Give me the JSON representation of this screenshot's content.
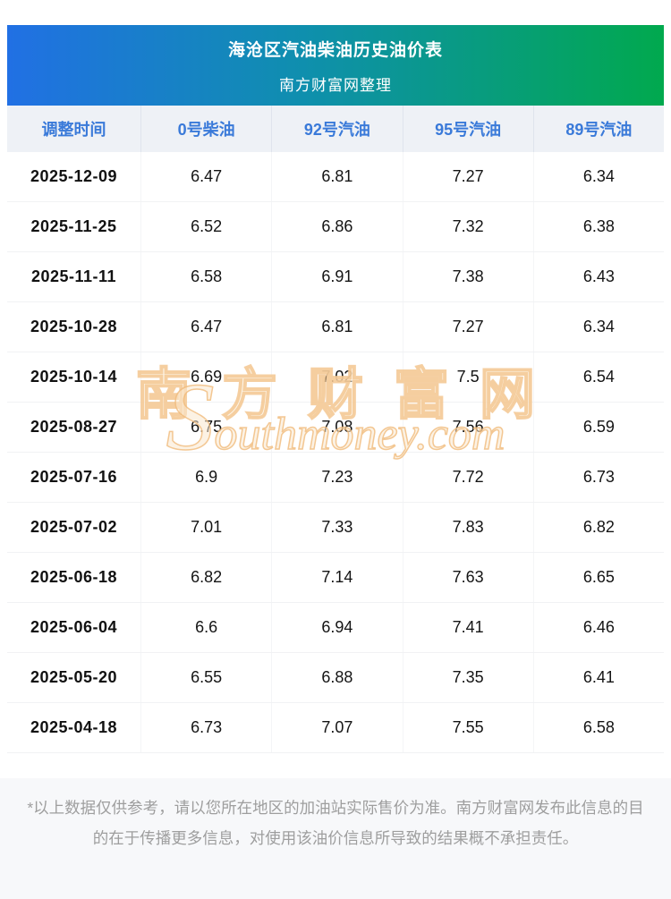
{
  "header": {
    "title": "海沧区汽油柴油历史油价表",
    "subtitle": "南方财富网整理"
  },
  "table": {
    "columns": [
      "调整时间",
      "0号柴油",
      "92号汽油",
      "95号汽油",
      "89号汽油"
    ],
    "rows": [
      {
        "date": "2025-12-09",
        "values": [
          "6.47",
          "6.81",
          "7.27",
          "6.34"
        ]
      },
      {
        "date": "2025-11-25",
        "values": [
          "6.52",
          "6.86",
          "7.32",
          "6.38"
        ]
      },
      {
        "date": "2025-11-11",
        "values": [
          "6.58",
          "6.91",
          "7.38",
          "6.43"
        ]
      },
      {
        "date": "2025-10-28",
        "values": [
          "6.47",
          "6.81",
          "7.27",
          "6.34"
        ]
      },
      {
        "date": "2025-10-14",
        "values": [
          "6.69",
          "7.02",
          "7.5",
          "6.54"
        ]
      },
      {
        "date": "2025-08-27",
        "values": [
          "6.75",
          "7.08",
          "7.56",
          "6.59"
        ]
      },
      {
        "date": "2025-07-16",
        "values": [
          "6.9",
          "7.23",
          "7.72",
          "6.73"
        ]
      },
      {
        "date": "2025-07-02",
        "values": [
          "7.01",
          "7.33",
          "7.83",
          "6.82"
        ]
      },
      {
        "date": "2025-06-18",
        "values": [
          "6.82",
          "7.14",
          "7.63",
          "6.65"
        ]
      },
      {
        "date": "2025-06-04",
        "values": [
          "6.6",
          "6.94",
          "7.41",
          "6.46"
        ]
      },
      {
        "date": "2025-05-20",
        "values": [
          "6.55",
          "6.88",
          "7.35",
          "6.41"
        ]
      },
      {
        "date": "2025-04-18",
        "values": [
          "6.73",
          "7.07",
          "7.55",
          "6.58"
        ]
      }
    ]
  },
  "watermark": {
    "cn": "南方财富网",
    "en": "Southmoney.com"
  },
  "footer": {
    "disclaimer": "*以上数据仅供参考，请以您所在地区的加油站实际售价为准。南方财富网发布此信息的目的在于传播更多信息，对使用该油价信息所导致的结果概不承担责任。"
  },
  "colors": {
    "banner_gradient_left": "#2170e4",
    "banner_gradient_right": "#01a94e",
    "header_row_bg": "#eef1f6",
    "header_row_text": "#3a7ad9",
    "body_text": "#141414",
    "footer_bg": "#f7f8fa",
    "footer_text": "#9e9e9e",
    "watermark_orange": "#f3c792"
  },
  "chart_data": {
    "type": "table",
    "title": "海沧区汽油柴油历史油价表",
    "subtitle": "南方财富网整理",
    "columns": [
      "调整时间",
      "0号柴油",
      "92号汽油",
      "95号汽油",
      "89号汽油"
    ],
    "rows": [
      [
        "2025-12-09",
        6.47,
        6.81,
        7.27,
        6.34
      ],
      [
        "2025-11-25",
        6.52,
        6.86,
        7.32,
        6.38
      ],
      [
        "2025-11-11",
        6.58,
        6.91,
        7.38,
        6.43
      ],
      [
        "2025-10-28",
        6.47,
        6.81,
        7.27,
        6.34
      ],
      [
        "2025-10-14",
        6.69,
        7.02,
        7.5,
        6.54
      ],
      [
        "2025-08-27",
        6.75,
        7.08,
        7.56,
        6.59
      ],
      [
        "2025-07-16",
        6.9,
        7.23,
        7.72,
        6.73
      ],
      [
        "2025-07-02",
        7.01,
        7.33,
        7.83,
        6.82
      ],
      [
        "2025-06-18",
        6.82,
        7.14,
        7.63,
        6.65
      ],
      [
        "2025-06-04",
        6.6,
        6.94,
        7.41,
        6.46
      ],
      [
        "2025-05-20",
        6.55,
        6.88,
        7.35,
        6.41
      ],
      [
        "2025-04-18",
        6.73,
        7.07,
        7.55,
        6.58
      ]
    ]
  }
}
